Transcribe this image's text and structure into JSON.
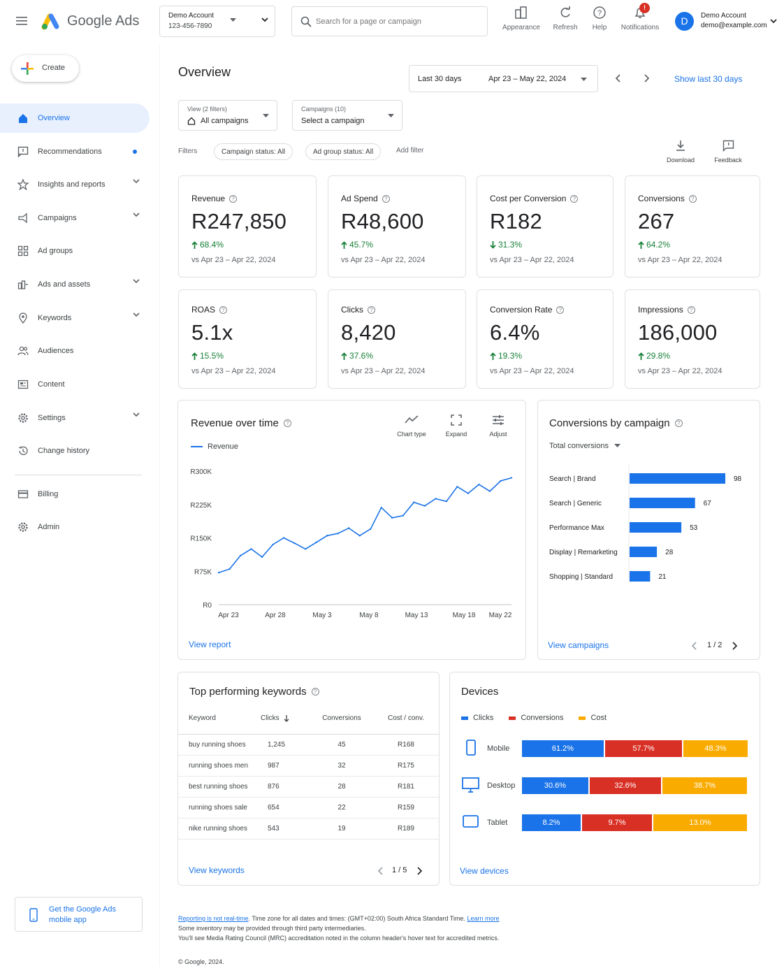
{
  "app": {
    "name": "Google Ads"
  },
  "account": {
    "name": "Demo Account",
    "id": "123-456-7890"
  },
  "search": {
    "placeholder": "Search for a page or campaign"
  },
  "toolbar": {
    "appearance": "Appearance",
    "refresh": "Refresh",
    "help": "Help",
    "notifications": "Notifications",
    "notification_count": "!"
  },
  "user": {
    "initial": "D",
    "name": "Demo Account",
    "email": "demo@example.com"
  },
  "create_label": "Create",
  "sidebar": {
    "items": [
      {
        "label": "Overview",
        "icon": "home-icon"
      },
      {
        "label": "Recommendations",
        "icon": "recommendations-icon"
      },
      {
        "label": "Insights and reports",
        "icon": "insights-icon"
      },
      {
        "label": "Campaigns",
        "icon": "campaigns-icon"
      },
      {
        "label": "Ad groups",
        "icon": "ad-groups-icon"
      },
      {
        "label": "Ads and assets",
        "icon": "ads-assets-icon"
      },
      {
        "label": "Keywords",
        "icon": "keywords-icon"
      },
      {
        "label": "Audiences",
        "icon": "audiences-icon"
      },
      {
        "label": "Content",
        "icon": "content-icon"
      },
      {
        "label": "Settings",
        "icon": "settings-icon"
      },
      {
        "label": "Change history",
        "icon": "history-icon"
      },
      {
        "label": "Billing",
        "icon": "billing-icon"
      },
      {
        "label": "Admin",
        "icon": "admin-icon"
      }
    ],
    "mobile_app": "Get the Google Ads mobile app"
  },
  "page": {
    "title": "Overview",
    "date_range_label": "Last 30 days",
    "date_range": "Apr 23 – May 22, 2024",
    "show_last": "Show last 30 days"
  },
  "view_filter": {
    "label": "View (2 filters)",
    "value": "All campaigns"
  },
  "campaign_filter": {
    "label": "Campaigns (10)",
    "value": "Select a campaign"
  },
  "filters": {
    "label": "Filters",
    "chips": [
      "Campaign status: All",
      "Ad group status: All"
    ],
    "add": "Add filter"
  },
  "actions": {
    "download": "Download",
    "feedback": "Feedback"
  },
  "kpis": [
    {
      "label": "Revenue",
      "value": "R247,850",
      "delta": "68.4%",
      "direction": "up",
      "vs": "vs Apr 23 – Apr 22, 2024"
    },
    {
      "label": "Ad Spend",
      "value": "R48,600",
      "delta": "45.7%",
      "direction": "up",
      "vs": "vs Apr 23 – Apr 22, 2024"
    },
    {
      "label": "Cost per Conversion",
      "value": "R182",
      "delta": "31.3%",
      "direction": "down",
      "vs": "vs Apr 23 – Apr 22, 2024"
    },
    {
      "label": "Conversions",
      "value": "267",
      "delta": "64.2%",
      "direction": "up",
      "vs": "vs Apr 23 – Apr 22, 2024"
    },
    {
      "label": "ROAS",
      "value": "5.1x",
      "delta": "15.5%",
      "direction": "up",
      "vs": "vs Apr 23 – Apr 22, 2024"
    },
    {
      "label": "Clicks",
      "value": "8,420",
      "delta": "37.6%",
      "direction": "up",
      "vs": "vs Apr 23 – Apr 22, 2024"
    },
    {
      "label": "Conversion Rate",
      "value": "6.4%",
      "delta": "19.3%",
      "direction": "up",
      "vs": "vs Apr 23 – Apr 22, 2024"
    },
    {
      "label": "Impressions",
      "value": "186,000",
      "delta": "29.8%",
      "direction": "up",
      "vs": "vs Apr 23 – Apr 22, 2024"
    }
  ],
  "revenue_card": {
    "title": "Revenue over time",
    "chart_type": "Chart type",
    "expand": "Expand",
    "adjust": "Adjust",
    "view_report": "View report"
  },
  "conversions_card": {
    "title": "Conversions by campaign",
    "metric": "Total conversions",
    "view_campaigns": "View campaigns",
    "pager": "1 / 2"
  },
  "keywords_card": {
    "title": "Top performing keywords",
    "headers": [
      "Keyword",
      "Clicks",
      "Conversions",
      "Cost / conv."
    ],
    "rows": [
      [
        "buy running shoes",
        "1,245",
        "45",
        "R168"
      ],
      [
        "running shoes men",
        "987",
        "32",
        "R175"
      ],
      [
        "best running shoes",
        "876",
        "28",
        "R181"
      ],
      [
        "running shoes sale",
        "654",
        "22",
        "R159"
      ],
      [
        "nike running shoes",
        "543",
        "19",
        "R189"
      ]
    ],
    "view_keywords": "View keywords",
    "pager": "1 / 5"
  },
  "devices_card": {
    "title": "Devices",
    "legend": [
      "Clicks",
      "Conversions",
      "Cost"
    ],
    "colors": {
      "clicks": "#1a73e8",
      "conversions": "#d93025",
      "cost": "#f9ab00"
    },
    "rows": [
      {
        "device": "Mobile",
        "icon": "mobile-icon",
        "clicks": "61.2%",
        "conversions": "57.7%",
        "cost": "48.3%"
      },
      {
        "device": "Desktop",
        "icon": "desktop-icon",
        "clicks": "30.6%",
        "conversions": "32.6%",
        "cost": "38.7%"
      },
      {
        "device": "Tablet",
        "icon": "tablet-icon",
        "clicks": "8.2%",
        "conversions": "9.7%",
        "cost": "13.0%"
      }
    ],
    "view_devices": "View devices"
  },
  "footer": {
    "realtime_link": "Reporting is not real-time",
    "line1": ". Time zone for all dates and times: (GMT+02:00) South Africa Standard Time. ",
    "learn_more": "Learn more",
    "line2": "Some inventory may be provided through third party intermediaries.",
    "line3": "You'll see Media Rating Council (MRC) accreditation noted in the column header's hover text for accredited metrics.",
    "copyright": "© Google, 2024."
  },
  "chart_data": [
    {
      "type": "line",
      "title": "Revenue over time",
      "series": [
        {
          "name": "Revenue",
          "values": [
            72000,
            80000,
            110000,
            125000,
            107000,
            135000,
            150000,
            138000,
            125000,
            140000,
            155000,
            160000,
            172000,
            155000,
            170000,
            218000,
            195000,
            200000,
            230000,
            222000,
            238000,
            232000,
            265000,
            250000,
            270000,
            255000,
            278000,
            285000
          ]
        }
      ],
      "x_tick_labels": [
        "Apr 23",
        "Apr 28",
        "May 3",
        "May 8",
        "May 13",
        "May 18",
        "May 22"
      ],
      "y_tick_labels": [
        "R0",
        "R75K",
        "R150K",
        "R225K",
        "R300K"
      ],
      "ylim": [
        0,
        300000
      ],
      "grid": false,
      "legend": "top-left"
    },
    {
      "type": "bar",
      "orientation": "horizontal",
      "title": "Conversions by campaign",
      "categories": [
        "Search | Brand",
        "Search | Generic",
        "Performance Max",
        "Display | Remarketing",
        "Shopping | Standard"
      ],
      "values": [
        98,
        67,
        53,
        28,
        21
      ],
      "color": "#1a73e8"
    },
    {
      "type": "bar",
      "orientation": "horizontal",
      "stacked": true,
      "title": "Devices",
      "categories": [
        "Mobile",
        "Desktop",
        "Tablet"
      ],
      "series": [
        {
          "name": "Clicks",
          "values": [
            61.2,
            30.6,
            8.2
          ]
        },
        {
          "name": "Conversions",
          "values": [
            57.7,
            32.6,
            9.7
          ]
        },
        {
          "name": "Cost",
          "values": [
            48.3,
            38.7,
            13.0
          ]
        }
      ]
    }
  ]
}
